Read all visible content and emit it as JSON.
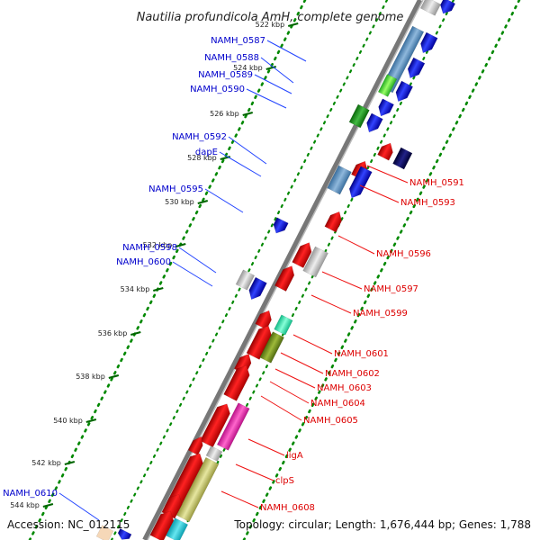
{
  "title": "Nautilia profundicola AmH, complete genome",
  "footer": {
    "accession": "Accession: NC_012115",
    "topology": "Topology: circular; Length: 1,676,444 bp; Genes: 1,788"
  },
  "colors": {
    "forward_label": "#0000cc",
    "reverse_label": "#dd0000",
    "tick": "#006600",
    "dots": "#008800"
  },
  "ticks": [
    {
      "label": "522 kbp"
    },
    {
      "label": "524 kbp"
    },
    {
      "label": "526 kbp"
    },
    {
      "label": "528 kbp"
    },
    {
      "label": "530 kbp"
    },
    {
      "label": "532 kbp"
    },
    {
      "label": "534 kbp"
    },
    {
      "label": "536 kbp"
    },
    {
      "label": "538 kbp"
    },
    {
      "label": "540 kbp"
    },
    {
      "label": "542 kbp"
    },
    {
      "label": "544 kbp"
    }
  ],
  "forward_labels": [
    {
      "text": "NAMH_0587"
    },
    {
      "text": "NAMH_0588"
    },
    {
      "text": "NAMH_0589"
    },
    {
      "text": "NAMH_0590"
    },
    {
      "text": "NAMH_0592"
    },
    {
      "text": "dapE"
    },
    {
      "text": "NAMH_0595"
    },
    {
      "text": "NAMH_0598"
    },
    {
      "text": "NAMH_0600"
    },
    {
      "text": "NAMH_0610"
    }
  ],
  "reverse_labels": [
    {
      "text": "NAMH_0591"
    },
    {
      "text": "NAMH_0593"
    },
    {
      "text": "NAMH_0596"
    },
    {
      "text": "NAMH_0597"
    },
    {
      "text": "NAMH_0599"
    },
    {
      "text": "NAMH_0601"
    },
    {
      "text": "NAMH_0602"
    },
    {
      "text": "NAMH_0603"
    },
    {
      "text": "NAMH_0604"
    },
    {
      "text": "NAMH_0605"
    },
    {
      "text": "ligA"
    },
    {
      "text": "clpS"
    },
    {
      "text": "NAMH_0608"
    }
  ]
}
